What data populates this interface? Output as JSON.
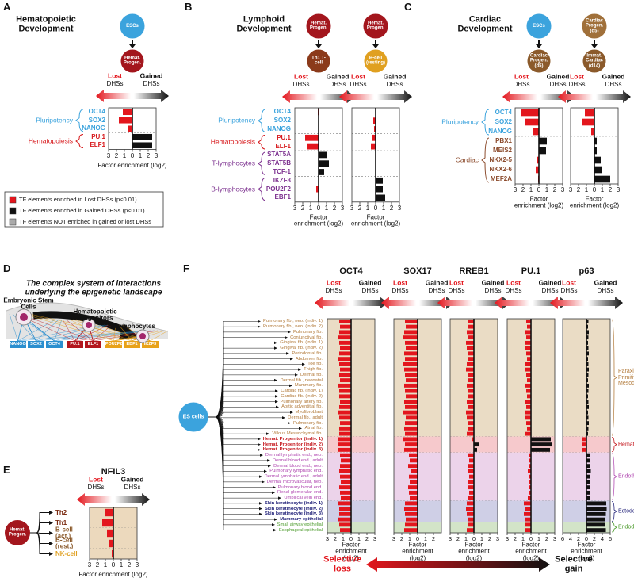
{
  "colors": {
    "lost": "#e3161d",
    "gained": "#111111"
  },
  "labels": {
    "lost": "Lost",
    "gained": "Gained",
    "dhss": "DHSs",
    "xlabel": "Factor enrichment (log2)"
  },
  "panel_a": {
    "letter": "A",
    "title": "Hematopoietic Development",
    "groups": [
      {
        "name": "Pluripotency",
        "color": "#3ba3dd",
        "rows": [
          "OCT4",
          "SOX2",
          "NANOG"
        ]
      },
      {
        "name": "Hematopoiesis",
        "color": "#d7191c",
        "rows": [
          "PU.1",
          "ELF1"
        ]
      }
    ],
    "charts": [
      {
        "from": {
          "label": "ESCs",
          "color": "#3ba3dd"
        },
        "to": {
          "label": "Hemat. Progen.",
          "color": "#a3161d"
        },
        "values": [
          -1.2,
          -1.7,
          -0.5,
          2.5,
          2.5
        ],
        "xlim": [
          -3,
          3
        ],
        "xticks": [
          {
            "value": -3,
            "label": "3"
          },
          {
            "value": -2,
            "label": "2"
          },
          {
            "value": -1,
            "label": "1"
          },
          0,
          1,
          2,
          3
        ]
      }
    ],
    "legend": [
      {
        "label": "TF elements enriched in Lost DHSs (p<0.01)",
        "color": "#e3161d"
      },
      {
        "label": "TF elements enriched in Gained DHSs (p<0.01)",
        "color": "#111111"
      },
      {
        "label": "TF elements NOT enriched in gained or lost DHSs",
        "color": "#aaaaaa"
      }
    ]
  },
  "panel_b": {
    "letter": "B",
    "title": "Lymphoid Development",
    "groups": [
      {
        "name": "Pluripotency",
        "color": "#3ba3dd",
        "rows": [
          "OCT4",
          "SOX2",
          "NANOG"
        ]
      },
      {
        "name": "Hematopoiesis",
        "color": "#d7191c",
        "rows": [
          "PU.1",
          "ELF1"
        ]
      },
      {
        "name": "T-lymphocytes",
        "color": "#7b2f8e",
        "rows": [
          "STAT5A",
          "STAT5B",
          "TCF-1"
        ]
      },
      {
        "name": "B-lymphocytes",
        "color": "#7b2f8e",
        "rows": [
          "IKZF3",
          "POU2F2",
          "EBF1"
        ]
      }
    ],
    "charts": [
      {
        "from": {
          "label": "Hemat. Progen.",
          "color": "#a3161d"
        },
        "to": {
          "label": "Th1 T-cell",
          "color": "#8b3a1a"
        },
        "values": [
          -0.1,
          0,
          0,
          -1.7,
          -1.5,
          1.0,
          1.3,
          0.7,
          0,
          -0.3,
          0
        ],
        "xlim": [
          -3,
          3
        ],
        "xticks": [
          {
            "value": -3,
            "label": "3"
          },
          {
            "value": -2,
            "label": "2"
          },
          {
            "value": -1,
            "label": "1"
          },
          0,
          1,
          2,
          3
        ]
      },
      {
        "from": {
          "label": "Hemat. Progen.",
          "color": "#a3161d"
        },
        "to": {
          "label": "B-cell (resting)",
          "color": "#e0a020"
        },
        "values": [
          0,
          -0.3,
          -0.2,
          -0.5,
          -0.6,
          0,
          0,
          0,
          0.9,
          0.9,
          1.2
        ],
        "xlim": [
          -3,
          3
        ],
        "xticks": [
          {
            "value": -3,
            "label": "3"
          },
          {
            "value": -2,
            "label": "2"
          },
          {
            "value": -1,
            "label": "1"
          },
          0,
          1,
          2,
          3
        ]
      }
    ]
  },
  "panel_c": {
    "letter": "C",
    "title": "Cardiac Development",
    "groups": [
      {
        "name": "Pluripotency",
        "color": "#3ba3dd",
        "rows": [
          "OCT4",
          "SOX2",
          "NANOG"
        ]
      },
      {
        "name": "Cardiac",
        "color": "#8b4a2b",
        "rows": [
          "PBX1",
          "MEIS2",
          "NKX2-5",
          "NKX2-6",
          "MEF2A"
        ]
      }
    ],
    "charts": [
      {
        "from": {
          "label": "ESCs",
          "color": "#3ba3dd"
        },
        "to": {
          "label": "Cardiac Progen. (d5)",
          "color": "#8b5a2b"
        },
        "values": [
          -2.2,
          -1.7,
          -0.8,
          1.0,
          0.9,
          -0.2,
          -0.4,
          -0.1
        ],
        "xlim": [
          -3,
          3
        ],
        "xticks": [
          {
            "value": -3,
            "label": "3"
          },
          {
            "value": -2,
            "label": "2"
          },
          {
            "value": -1,
            "label": "1"
          },
          0,
          1,
          2,
          3
        ]
      },
      {
        "from": {
          "label": "Cardiac Progen. (d5)",
          "color": "#a0703a"
        },
        "to": {
          "label": "Immat. Cardiac (d14)",
          "color": "#8b5a2b"
        },
        "values": [
          -1.2,
          -1.5,
          -0.4,
          0.3,
          0.3,
          0.8,
          1.0,
          2.0
        ],
        "xlim": [
          -3,
          3
        ],
        "xticks": [
          {
            "value": -3,
            "label": "3"
          },
          {
            "value": -2,
            "label": "2"
          },
          {
            "value": -1,
            "label": "1"
          },
          0,
          1,
          2,
          3
        ]
      }
    ]
  },
  "panel_d": {
    "letter": "D",
    "title": "The complex system of interactions underlying the epigenetic landscape",
    "cells": [
      {
        "label": "Embryonic Stem Cells",
        "tfs": [
          {
            "label": "NANOG",
            "color": "#2b8fcf"
          },
          {
            "label": "SOX2",
            "color": "#2b8fcf"
          },
          {
            "label": "OCT4",
            "color": "#2b8fcf"
          }
        ]
      },
      {
        "label": "Hematopoietic Progenitors",
        "tfs": [
          {
            "label": "PU.1",
            "color": "#b3161d"
          },
          {
            "label": "ELF1",
            "color": "#b3161d"
          }
        ]
      },
      {
        "label": "B-Lymphocytes",
        "tfs": [
          {
            "label": "POU2F2",
            "color": "#e8a21a"
          },
          {
            "label": "EBF1",
            "color": "#e8a21a"
          },
          {
            "label": "IKZF3",
            "color": "#e8a21a"
          }
        ]
      }
    ]
  },
  "panel_e": {
    "letter": "E",
    "title": "NFIL3",
    "root": "Hemat. Progen.",
    "groups": [
      {
        "color": "#7a2a10",
        "band": "#ecd9bd",
        "rows": [
          "Th2",
          "Th1"
        ]
      },
      {
        "color": "#8b5a2b",
        "band": "#ecd9bd",
        "rows": [
          "B-cell (act.)",
          "B-cell (rest.)"
        ]
      },
      {
        "color": "#e0a020",
        "band": "#ecd9bd",
        "rows": [
          "NK-cell"
        ]
      }
    ],
    "chart": {
      "values": [
        -1.0,
        -1.4,
        -0.8,
        -0.6,
        -0.2
      ],
      "xlim": [
        -3,
        3
      ],
      "xticks": [
        {
          "value": -3,
          "label": "3"
        },
        {
          "value": -2,
          "label": "2"
        },
        {
          "value": -1,
          "label": "1"
        },
        0,
        1,
        2,
        3
      ]
    }
  },
  "panel_f": {
    "letter": "F",
    "root": "ES cells",
    "groups": [
      {
        "name": "Paraxial & Primitive Mesoderm",
        "color": "#b27a3a",
        "band": "#eadcc5",
        "rows": [
          "Pulmonary fib., neo. (indiv. 1)",
          "Pulmonary fib., neo. (indiv. 2)",
          "Pulmonary fib.",
          "Conjunctival fib.",
          "Gingival fib. (indiv. 1)",
          "Gingival fib. (indiv. 2)",
          "Periodontal fib.",
          "Abdomen fib.",
          "Toe fib.",
          "Thigh fib.",
          "Dermal fib.",
          "Dermal fib., neonatal",
          "Mammary fib.",
          "Cardiac fib. (indiv. 1)",
          "Cardiac fib. (indiv. 2)",
          "Pulmonary artery fib.",
          "Aortic adventitial fib.",
          "Myofibroblast",
          "Dermal fib., adult",
          "Pulmonary fib.",
          "Atrial fib.",
          "Villous Mesenchymal fib."
        ]
      },
      {
        "name": "Hemat. Progenitor",
        "color": "#c4161c",
        "band": "#f6c9cc",
        "rows": [
          "Hemat. Progenitor (indiv. 1)",
          "Hemat. Progenitor (indiv. 2)",
          "Hemat. Progenitor (indiv. 3)"
        ]
      },
      {
        "name": "Endothelia",
        "color": "#b047b0",
        "band": "#ecd3ea",
        "rows": [
          "Dermal lymphatic end., neo.",
          "Dermal blood end., adult",
          "Dermal blood end., neo.",
          "Pulmonary lymphatic end.",
          "Dermal lymphatic end., adult",
          "Dermal microvascular, neo.",
          "Pulmonary blood end.",
          "Renal glomerular end.",
          "Umbilical vein end."
        ]
      },
      {
        "name": "Ectoderm",
        "color": "#23237a",
        "band": "#cfcfe6",
        "rows": [
          "Skin keratinocyte (indiv. 1)",
          "Skin keratinocyte (indiv. 2)",
          "Skin keratinocyte (indiv. 3)",
          "Mammary epithelial"
        ]
      },
      {
        "name": "Endoderm",
        "color": "#4a9a2a",
        "band": "#d3e4c8",
        "rows": [
          "Small airway epithelial",
          "Esophageal epithelial"
        ]
      }
    ],
    "charts": [
      {
        "title": "OCT4",
        "xlim": [
          -3,
          3
        ],
        "xticks": [
          {
            "value": -3,
            "label": "3"
          },
          {
            "value": -2,
            "label": "2"
          },
          {
            "value": -1,
            "label": "1"
          },
          0,
          1,
          2,
          3
        ],
        "values": [
          -1.5,
          -1.4,
          -1.5,
          -1.6,
          -1.5,
          -1.4,
          -1.5,
          -1.6,
          -1.5,
          -1.4,
          -1.5,
          -1.4,
          -1.6,
          -1.5,
          -1.5,
          -1.4,
          -1.5,
          -1.6,
          -1.5,
          -1.4,
          -1.5,
          -1.5,
          -1.6,
          -1.7,
          -1.6,
          -1.4,
          -1.3,
          -1.4,
          -1.5,
          -1.4,
          -1.3,
          -1.5,
          -1.4,
          -1.3,
          -1.6,
          -1.5,
          -1.5,
          -1.6,
          -1.5,
          -1.4
        ]
      },
      {
        "title": "SOX17",
        "xlim": [
          -3,
          3
        ],
        "xticks": [
          {
            "value": -3,
            "label": "3"
          },
          {
            "value": -2,
            "label": "2"
          },
          {
            "value": -1,
            "label": "1"
          },
          0,
          1,
          2
        ],
        "values": [
          -1.6,
          -1.5,
          -1.7,
          -1.8,
          -1.6,
          -1.5,
          -1.7,
          -1.6,
          -1.8,
          -1.7,
          -1.6,
          -1.5,
          -1.7,
          -1.6,
          -1.5,
          -1.7,
          -1.6,
          -1.8,
          -1.5,
          -1.6,
          -1.7,
          -1.6,
          -1.8,
          -1.6,
          -1.7,
          -1.1,
          -1.0,
          -1.2,
          -0.9,
          -1.1,
          -1.0,
          -1.2,
          -1.1,
          -1.0,
          -1.6,
          -1.7,
          -1.6,
          -1.5,
          -1.6,
          -1.7
        ]
      },
      {
        "title": "RREB1",
        "xlim": [
          -3,
          3
        ],
        "xticks": [
          {
            "value": -3,
            "label": "3"
          },
          {
            "value": -2,
            "label": "2"
          },
          {
            "value": -1,
            "label": "1"
          },
          0,
          1,
          2,
          3
        ],
        "values": [
          -0.8,
          -0.7,
          -0.9,
          -0.8,
          -1.0,
          -0.9,
          -0.8,
          -0.7,
          -0.9,
          -1.0,
          -0.8,
          -0.7,
          -0.9,
          -0.8,
          -0.7,
          -0.9,
          -0.8,
          -1.0,
          -0.9,
          -0.8,
          -0.7,
          -0.9,
          -0.3,
          0.7,
          0.4,
          -0.8,
          -0.6,
          -0.7,
          -0.8,
          -0.6,
          -0.7,
          -0.8,
          -0.6,
          -0.7,
          -0.9,
          -1.0,
          -0.9,
          -0.8,
          -0.7,
          -0.9
        ]
      },
      {
        "title": "PU.1",
        "xlim": [
          -3,
          3
        ],
        "xticks": [
          {
            "value": -3,
            "label": "3"
          },
          {
            "value": -2,
            "label": "2"
          },
          {
            "value": -1,
            "label": "1"
          },
          0,
          1,
          2,
          3
        ],
        "values": [
          -0.6,
          -0.5,
          -0.7,
          -0.6,
          -0.8,
          -0.7,
          -0.6,
          -0.5,
          -0.7,
          -0.8,
          -0.6,
          -0.5,
          -0.7,
          -0.6,
          -0.5,
          -0.7,
          -0.6,
          -0.8,
          -0.7,
          -0.6,
          -0.5,
          -0.7,
          2.5,
          2.6,
          2.4,
          -0.3,
          -0.2,
          -0.3,
          -0.4,
          -0.2,
          -0.3,
          -0.3,
          -0.2,
          -0.4,
          -0.9,
          -0.8,
          -0.9,
          -0.8,
          -0.7,
          -0.8
        ]
      },
      {
        "title": "p63",
        "xlim": [
          -6,
          6
        ],
        "xticks": [
          {
            "value": -6,
            "label": "6"
          },
          {
            "value": -4,
            "label": "4"
          },
          {
            "value": -2,
            "label": "2"
          },
          0,
          2,
          4,
          6
        ],
        "values": [
          0.5,
          0.4,
          0.6,
          0.5,
          0.4,
          0.5,
          0.6,
          0.4,
          0.5,
          0.6,
          0.5,
          0.4,
          0.6,
          0.5,
          0.4,
          0.5,
          0.6,
          0.4,
          0.5,
          0.6,
          0.5,
          0.4,
          -1.0,
          -1.2,
          -1.1,
          0.9,
          1.0,
          0.8,
          1.1,
          0.9,
          1.0,
          0.8,
          0.9,
          1.0,
          5.0,
          5.1,
          4.9,
          4.8,
          4.8,
          4.9
        ]
      }
    ],
    "loss": "Selective loss",
    "gain": "Selective gain"
  }
}
